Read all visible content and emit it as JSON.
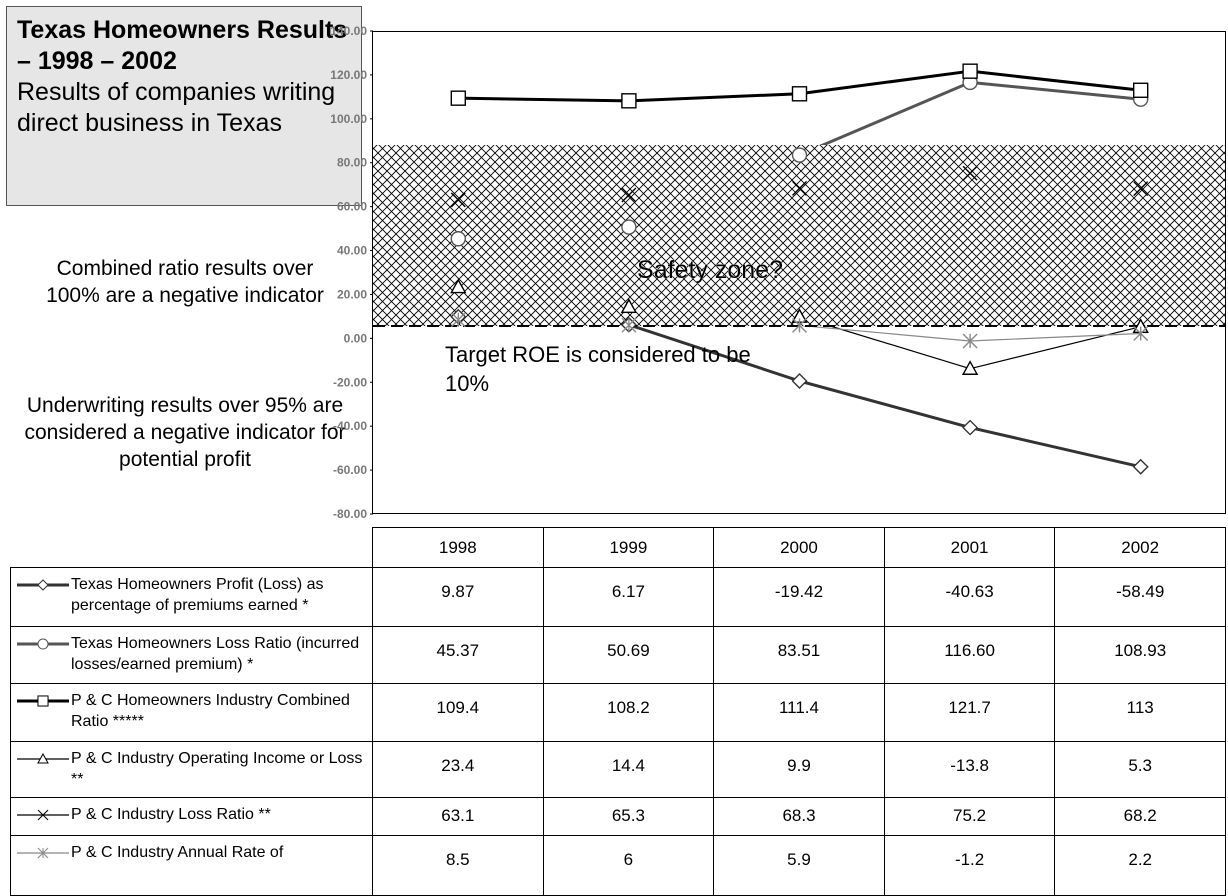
{
  "chart_data": {
    "type": "line",
    "title": "Texas Homeowners Results – 1998 – 2002",
    "subtitle": "Results of companies writing direct business in Texas",
    "annotations": [
      "Combined ratio results over 100% are a negative indicator",
      "Underwriting results over 95% are considered a negative indicator for potential profit",
      "Safety zone?",
      "Target ROE is considered to be 10%"
    ],
    "categories": [
      "1998",
      "1999",
      "2000",
      "2001",
      "2002"
    ],
    "series": [
      {
        "name": "Texas Homeowners Profit (Loss) as percentage of premiums earned *",
        "color": "#333333",
        "marker": "diamond",
        "width": 3,
        "values": [
          9.87,
          6.17,
          -19.42,
          -40.63,
          -58.49
        ]
      },
      {
        "name": "Texas Homeowners Loss Ratio (incurred losses/earned premium) *",
        "color": "#555555",
        "marker": "circle",
        "width": 3,
        "values": [
          45.37,
          50.69,
          83.51,
          116.6,
          108.93
        ],
        "value_labels": [
          "45.37",
          "50.69",
          "83.51",
          "116.60",
          "108.93"
        ]
      },
      {
        "name": "P & C Homeowners Industry Combined Ratio *****",
        "color": "#000000",
        "marker": "square",
        "width": 3,
        "values": [
          109.4,
          108.2,
          111.4,
          121.7,
          113
        ]
      },
      {
        "name": "P & C Industry Operating Income or Loss **",
        "color": "#000000",
        "marker": "triangle",
        "width": 1.2,
        "values": [
          23.4,
          14.4,
          9.9,
          -13.8,
          5.3
        ]
      },
      {
        "name": "P & C Industry Loss Ratio **",
        "color": "#000000",
        "marker": "x",
        "width": 1.2,
        "values": [
          63.1,
          65.3,
          68.3,
          75.2,
          68.2
        ]
      },
      {
        "name": "P & C Industry Annual Rate of",
        "color": "#888888",
        "marker": "asterisk",
        "width": 1.2,
        "values": [
          8.5,
          6,
          5.9,
          -1.2,
          2.2
        ]
      }
    ],
    "ylim": [
      -80,
      140
    ],
    "yticks": [
      {
        "value": -80,
        "label": "-80.00"
      },
      {
        "value": -60,
        "label": "-60.00"
      },
      {
        "value": -40,
        "label": "-40.00"
      },
      {
        "value": -20,
        "label": "-20.00"
      },
      {
        "value": 0,
        "label": "0.00"
      },
      {
        "value": 20,
        "label": "20.00"
      },
      {
        "value": 40,
        "label": "40.00"
      },
      {
        "value": 60,
        "label": "60.00"
      },
      {
        "value": 80,
        "label": "80.00"
      },
      {
        "value": 100,
        "label": "100.00"
      },
      {
        "value": 120,
        "label": "120.00"
      },
      {
        "value": 140,
        "label": "140.00"
      }
    ]
  }
}
